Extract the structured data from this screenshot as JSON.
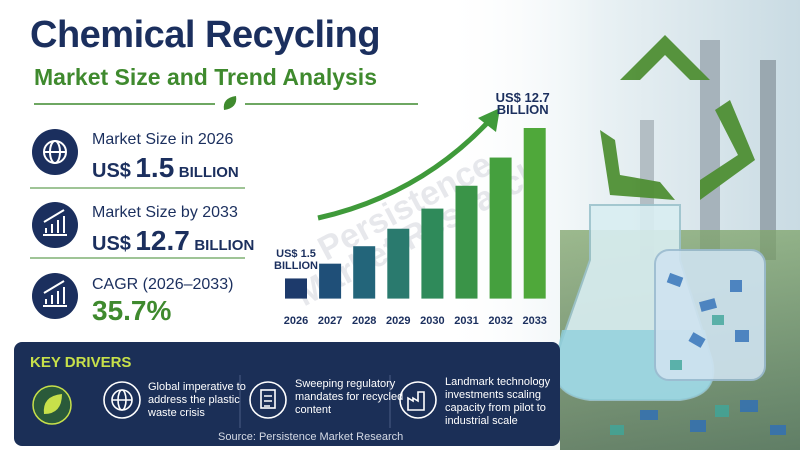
{
  "header": {
    "title": "Chemical Recycling",
    "subtitle": "Market Size and Trend Analysis"
  },
  "stats": [
    {
      "label": "Market Size in 2026",
      "prefix": "US$",
      "value": "1.5",
      "unit": "BILLION"
    },
    {
      "label": "Market Size by 2033",
      "prefix": "US$",
      "value": "12.7",
      "unit": "BILLION"
    },
    {
      "label": "CAGR (2026–2033)",
      "value": "35.7%"
    }
  ],
  "watermark": "Persistence\nMarket Research",
  "chart_data": {
    "type": "bar",
    "categories": [
      "2026",
      "2027",
      "2028",
      "2029",
      "2030",
      "2031",
      "2032",
      "2033"
    ],
    "values": [
      1.5,
      2.6,
      3.9,
      5.2,
      6.7,
      8.4,
      10.5,
      12.7
    ],
    "value_labels": [
      "US$ 1.5 BILLION",
      null,
      null,
      null,
      null,
      null,
      null,
      "US$ 12.7 BILLION"
    ],
    "colors": [
      "#1d3a6b",
      "#1f4f78",
      "#23657a",
      "#2a7a6e",
      "#2f8a5a",
      "#3a9448",
      "#45a03e",
      "#4fa83a"
    ],
    "ylim": [
      -0.7,
      12.7
    ]
  },
  "key_drivers": {
    "title": "KEY DRIVERS",
    "items": [
      "Global imperative to address the plastic waste crisis",
      "Sweeping regulatory mandates for recycled content",
      "Landmark technology investments scaling capacity from pilot to industrial scale"
    ]
  },
  "source": "Source: Persistence Market Research"
}
